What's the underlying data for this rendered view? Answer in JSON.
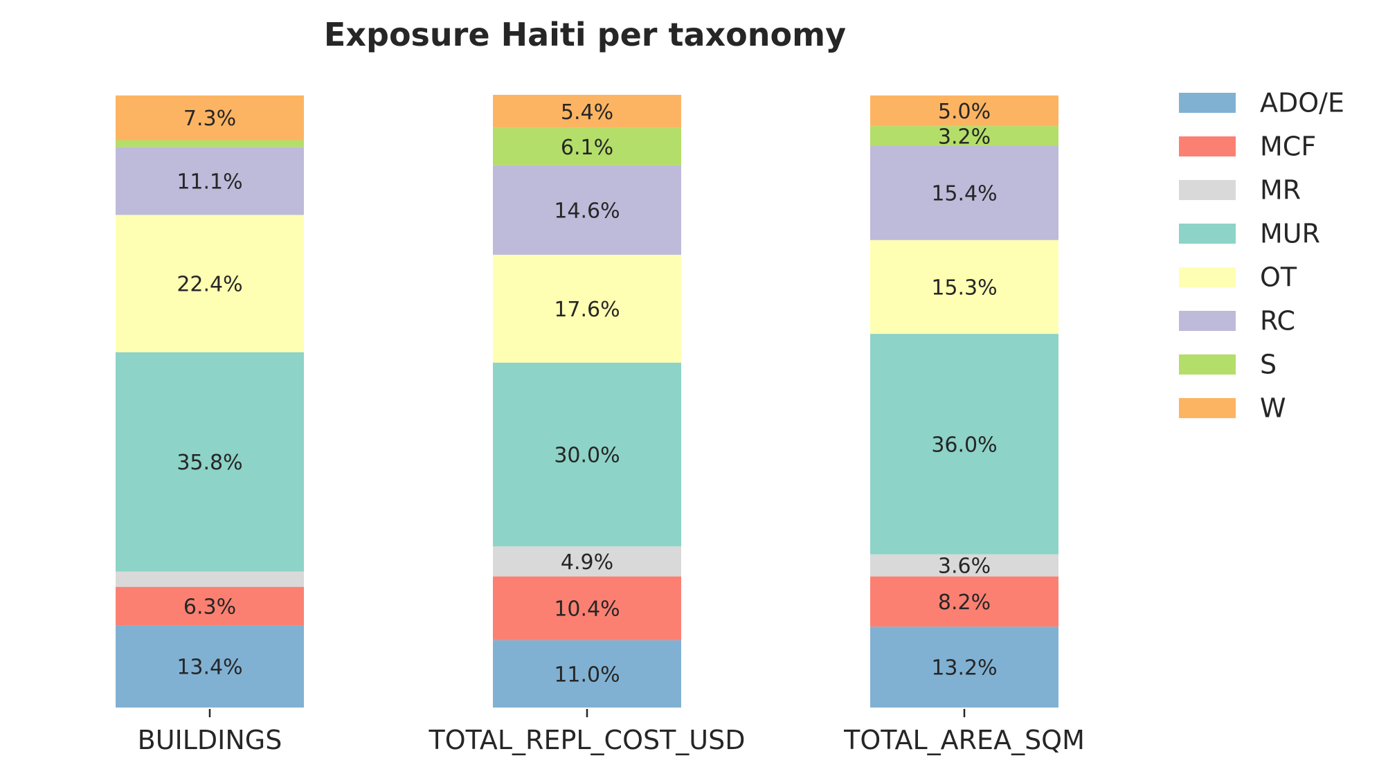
{
  "chart_data": {
    "type": "bar",
    "stacked": true,
    "normalized": true,
    "title": "Exposure Haiti per taxonomy",
    "xlabel": "",
    "ylabel": "",
    "ylim": [
      0,
      100
    ],
    "categories": [
      "BUILDINGS",
      "TOTAL_REPL_COST_USD",
      "TOTAL_AREA_SQM"
    ],
    "series": [
      {
        "name": "ADO/E",
        "color": "#80b1d3",
        "values": [
          13.4,
          11.0,
          13.2
        ]
      },
      {
        "name": "MCF",
        "color": "#fb8072",
        "values": [
          6.3,
          10.4,
          8.2
        ]
      },
      {
        "name": "MR",
        "color": "#d9d9d9",
        "values": [
          2.5,
          4.9,
          3.6
        ]
      },
      {
        "name": "MUR",
        "color": "#8dd3c7",
        "values": [
          35.8,
          30.0,
          36.0
        ]
      },
      {
        "name": "OT",
        "color": "#ffffb3",
        "values": [
          22.4,
          17.6,
          15.3
        ]
      },
      {
        "name": "RC",
        "color": "#bebada",
        "values": [
          11.1,
          14.6,
          15.4
        ]
      },
      {
        "name": "S",
        "color": "#b3de69",
        "values": [
          1.1,
          6.1,
          3.2
        ]
      },
      {
        "name": "W",
        "color": "#fdb462",
        "values": [
          7.3,
          5.4,
          5.0
        ]
      }
    ],
    "data_labels_shown": [
      [
        true,
        true,
        true
      ],
      [
        true,
        true,
        true
      ],
      [
        false,
        true,
        true
      ],
      [
        true,
        true,
        true
      ],
      [
        true,
        true,
        true
      ],
      [
        true,
        true,
        true
      ],
      [
        false,
        true,
        true
      ],
      [
        true,
        true,
        true
      ]
    ],
    "legend": "right",
    "grid": false
  }
}
